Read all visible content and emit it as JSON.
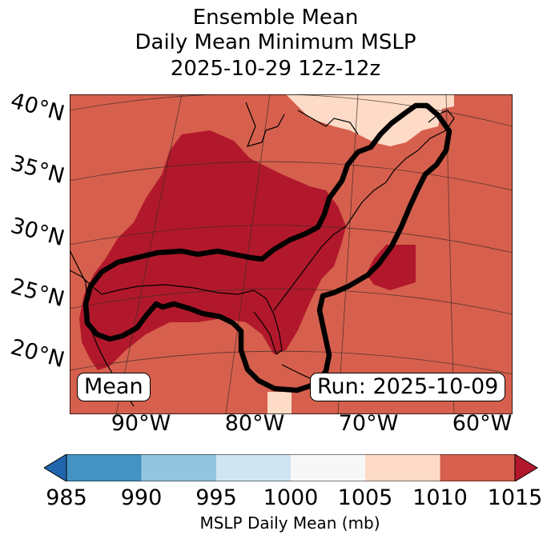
{
  "title": {
    "line1": "Ensemble Mean",
    "line2": "Daily Mean Minimum MSLP",
    "line3": "2025-10-29 12z-12z"
  },
  "map": {
    "lat_labels": [
      "40°N",
      "35°N",
      "30°N",
      "25°N",
      "20°N"
    ],
    "lon_labels": [
      "90°W",
      "80°W",
      "70°W",
      "60°W"
    ],
    "left_box": "Mean",
    "right_box": "Run: 2025-10-09",
    "colors": {
      "above_1010": "#d6604d",
      "band_1005_1010": "#fddbc7",
      "low_region": "#b2182b",
      "outline": "#000000"
    }
  },
  "colorbar": {
    "label": "MSLP Daily Mean (mb)",
    "ticks": [
      "985",
      "990",
      "995",
      "1000",
      "1005",
      "1010",
      "1015"
    ],
    "colors": [
      "#2166ac",
      "#4393c3",
      "#92c5de",
      "#d1e5f0",
      "#f7f7f7",
      "#fddbc7",
      "#d6604d",
      "#b2182b"
    ]
  }
}
